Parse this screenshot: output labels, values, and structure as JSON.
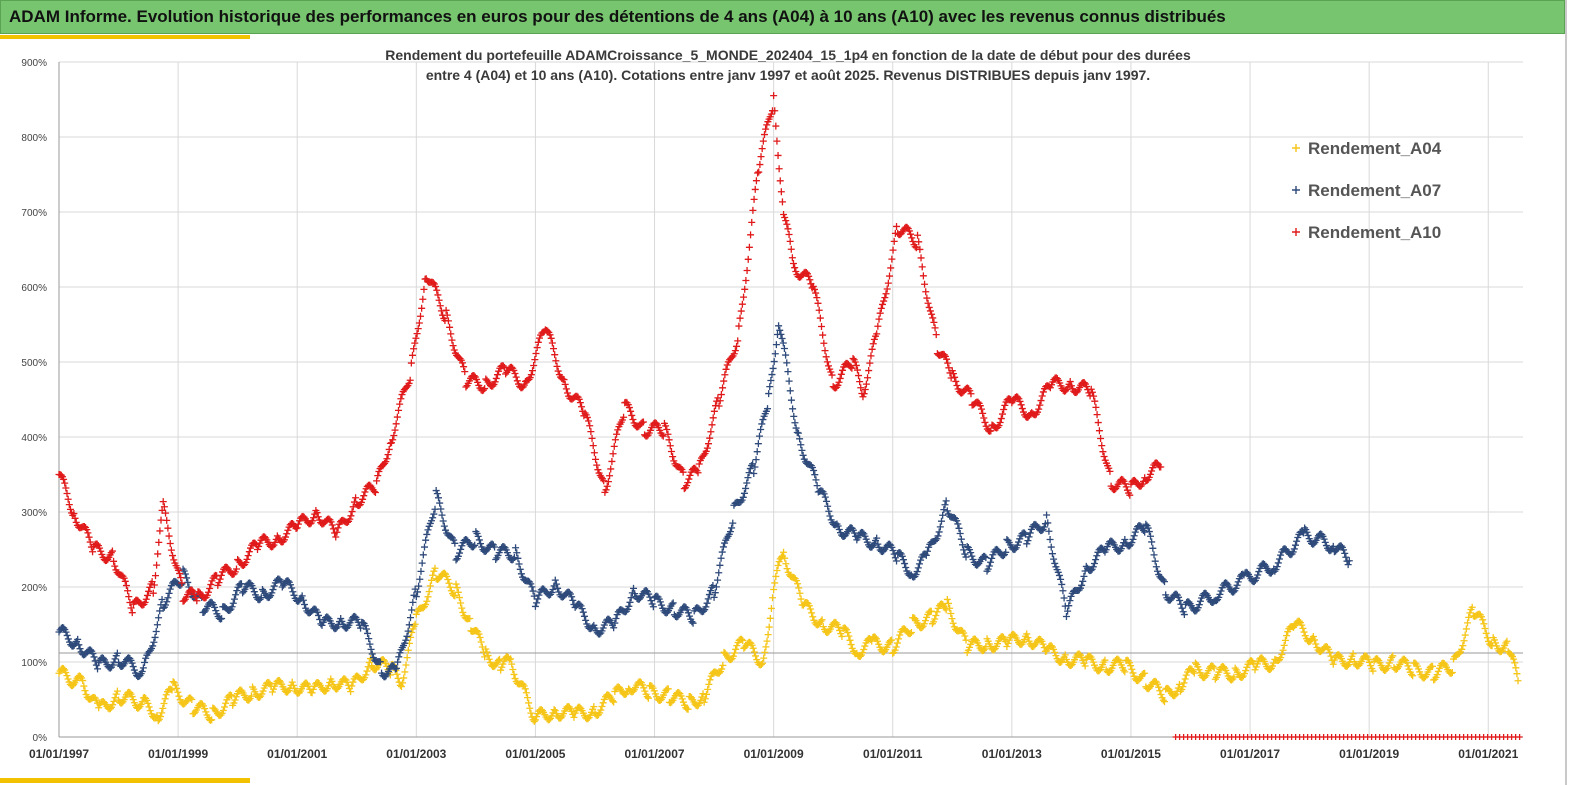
{
  "banner": {
    "title": "ADAM Informe. Evolution historique des performances en euros pour des détentions de 4 ans (A04) à 10 ans (A10) avec les revenus connus distribués"
  },
  "colors": {
    "banner_bg": "#77c56f",
    "accent": "#f2c200",
    "A04": "#f5c518",
    "A07": "#2e4a7a",
    "A10": "#e01a1a"
  },
  "chart_data": {
    "type": "scatter",
    "title": "Rendement du portefeuille ADAMCroissance_5_MONDE_202404_15_1p4  en fonction de la date de début pour des durées",
    "subtitle": "entre 4 (A04) et 10 ans (A10). Cotations entre janv 1997 et août 2025. Revenus DISTRIBUES depuis janv 1997.",
    "xlabel": "",
    "ylabel": "",
    "xlim": [
      "01/01/1997",
      "01/08/2021"
    ],
    "ylim": [
      0,
      900
    ],
    "x_ticks": [
      "01/01/1997",
      "01/01/1999",
      "01/01/2001",
      "01/01/2003",
      "01/01/2005",
      "01/01/2007",
      "01/01/2009",
      "01/01/2011",
      "01/01/2013",
      "01/01/2015",
      "01/01/2017",
      "01/01/2019",
      "01/01/2021"
    ],
    "y_ticks": [
      "0%",
      "100%",
      "200%",
      "300%",
      "400%",
      "500%",
      "600%",
      "700%",
      "800%",
      "900%"
    ],
    "grid": true,
    "legend_position": "top-right",
    "reference_line": 112,
    "marker": "+",
    "series": [
      {
        "name": "Rendement_A04",
        "x": [
          "1997-01",
          "1997-06",
          "1997-09",
          "1998-01",
          "1998-06",
          "1998-09",
          "1998-12",
          "1999-04",
          "1999-08",
          "1999-12",
          "2000-04",
          "2000-08",
          "2000-12",
          "2001-04",
          "2001-08",
          "2001-12",
          "2002-04",
          "2002-08",
          "2002-10",
          "2003-01",
          "2003-05",
          "2003-09",
          "2003-12",
          "2004-03",
          "2004-06",
          "2004-08",
          "2005-01",
          "2005-05",
          "2005-09",
          "2006-01",
          "2006-05",
          "2006-08",
          "2006-12",
          "2007-04",
          "2007-08",
          "2007-11",
          "2008-03",
          "2008-07",
          "2008-11",
          "2009-01",
          "2009-03",
          "2009-07",
          "2009-11",
          "2010-03",
          "2010-06",
          "2010-09",
          "2011-01",
          "2011-05",
          "2011-09",
          "2011-12",
          "2012-04",
          "2012-08",
          "2012-12",
          "2013-04",
          "2013-08",
          "2013-12",
          "2014-04",
          "2014-08",
          "2014-12",
          "2015-04",
          "2015-08",
          "2015-11",
          "2016-02",
          "2016-06",
          "2016-10",
          "2017-02",
          "2017-06",
          "2017-10",
          "2018-02",
          "2018-06",
          "2018-10",
          "2019-02",
          "2019-06",
          "2019-10",
          "2020-02",
          "2020-06",
          "2020-10",
          "2021-02",
          "2021-05",
          "2021-07"
        ],
        "y": [
          85,
          70,
          35,
          55,
          45,
          30,
          65,
          40,
          30,
          50,
          60,
          65,
          70,
          60,
          75,
          65,
          100,
          90,
          75,
          155,
          220,
          195,
          150,
          110,
          95,
          100,
          25,
          35,
          30,
          35,
          55,
          70,
          60,
          55,
          45,
          55,
          105,
          125,
          100,
          200,
          245,
          175,
          150,
          140,
          115,
          125,
          120,
          150,
          160,
          175,
          120,
          125,
          125,
          135,
          115,
          105,
          100,
          95,
          95,
          75,
          55,
          70,
          90,
          85,
          85,
          95,
          100,
          150,
          130,
          100,
          105,
          95,
          100,
          90,
          85,
          95,
          170,
          125,
          120,
          75
        ]
      },
      {
        "name": "Rendement_A07",
        "x": [
          "1997-01",
          "1997-05",
          "1997-09",
          "1998-01",
          "1998-06",
          "1998-10",
          "1999-02",
          "1999-06",
          "1999-10",
          "2000-02",
          "2000-06",
          "2000-10",
          "2001-02",
          "2001-06",
          "2001-10",
          "2002-02",
          "2002-06",
          "2002-09",
          "2003-01",
          "2003-05",
          "2003-09",
          "2004-01",
          "2004-05",
          "2004-09",
          "2005-01",
          "2005-05",
          "2005-09",
          "2006-01",
          "2006-05",
          "2006-09",
          "2007-01",
          "2007-05",
          "2007-09",
          "2008-01",
          "2008-05",
          "2008-09",
          "2008-12",
          "2009-02",
          "2009-06",
          "2009-10",
          "2010-02",
          "2010-06",
          "2010-10",
          "2011-02",
          "2011-05",
          "2011-08",
          "2011-12",
          "2012-04",
          "2012-08",
          "2012-12",
          "2013-04",
          "2013-08",
          "2013-12",
          "2014-04",
          "2014-08",
          "2014-12",
          "2015-04",
          "2015-08",
          "2015-12",
          "2016-06",
          "2016-12",
          "2017-06",
          "2017-12",
          "2018-06",
          "2018-09"
        ],
        "y": [
          140,
          125,
          95,
          105,
          85,
          180,
          215,
          175,
          165,
          200,
          190,
          205,
          185,
          150,
          155,
          150,
          90,
          85,
          195,
          320,
          245,
          265,
          245,
          245,
          180,
          205,
          175,
          145,
          150,
          195,
          180,
          170,
          160,
          195,
          300,
          360,
          450,
          555,
          400,
          330,
          280,
          265,
          260,
          240,
          220,
          240,
          310,
          245,
          230,
          255,
          265,
          290,
          165,
          225,
          250,
          260,
          280,
          195,
          170,
          190,
          210,
          230,
          270,
          255,
          235
        ]
      },
      {
        "name": "Rendement_A10",
        "x": [
          "1997-01",
          "1997-04",
          "1997-08",
          "1997-12",
          "1998-04",
          "1998-08",
          "1998-10",
          "1999-02",
          "1999-05",
          "1999-09",
          "2000-01",
          "2000-05",
          "2000-09",
          "2001-01",
          "2001-05",
          "2001-09",
          "2002-01",
          "2002-05",
          "2002-08",
          "2002-12",
          "2003-03",
          "2003-07",
          "2003-11",
          "2004-03",
          "2004-07",
          "2004-11",
          "2005-03",
          "2005-07",
          "2005-11",
          "2006-03",
          "2006-07",
          "2006-11",
          "2007-03",
          "2007-07",
          "2007-10",
          "2008-02",
          "2008-06",
          "2008-10",
          "2009-01",
          "2009-03",
          "2009-05",
          "2009-09",
          "2010-01",
          "2010-05",
          "2010-07",
          "2010-10",
          "2011-02",
          "2011-06",
          "2011-10",
          "2012-01",
          "2012-05",
          "2012-09",
          "2013-01",
          "2013-05",
          "2013-09",
          "2014-01",
          "2014-05",
          "2014-09",
          "2015-01",
          "2015-04",
          "2015-07"
        ],
        "y": [
          350,
          300,
          250,
          240,
          170,
          200,
          305,
          190,
          185,
          210,
          230,
          255,
          265,
          280,
          300,
          270,
          315,
          335,
          400,
          490,
          620,
          560,
          475,
          470,
          490,
          470,
          545,
          470,
          430,
          330,
          440,
          410,
          410,
          340,
          355,
          450,
          540,
          760,
          850,
          700,
          630,
          600,
          470,
          500,
          460,
          540,
          680,
          660,
          520,
          480,
          450,
          410,
          450,
          430,
          470,
          470,
          460,
          340,
          330,
          350,
          360
        ]
      }
    ]
  }
}
